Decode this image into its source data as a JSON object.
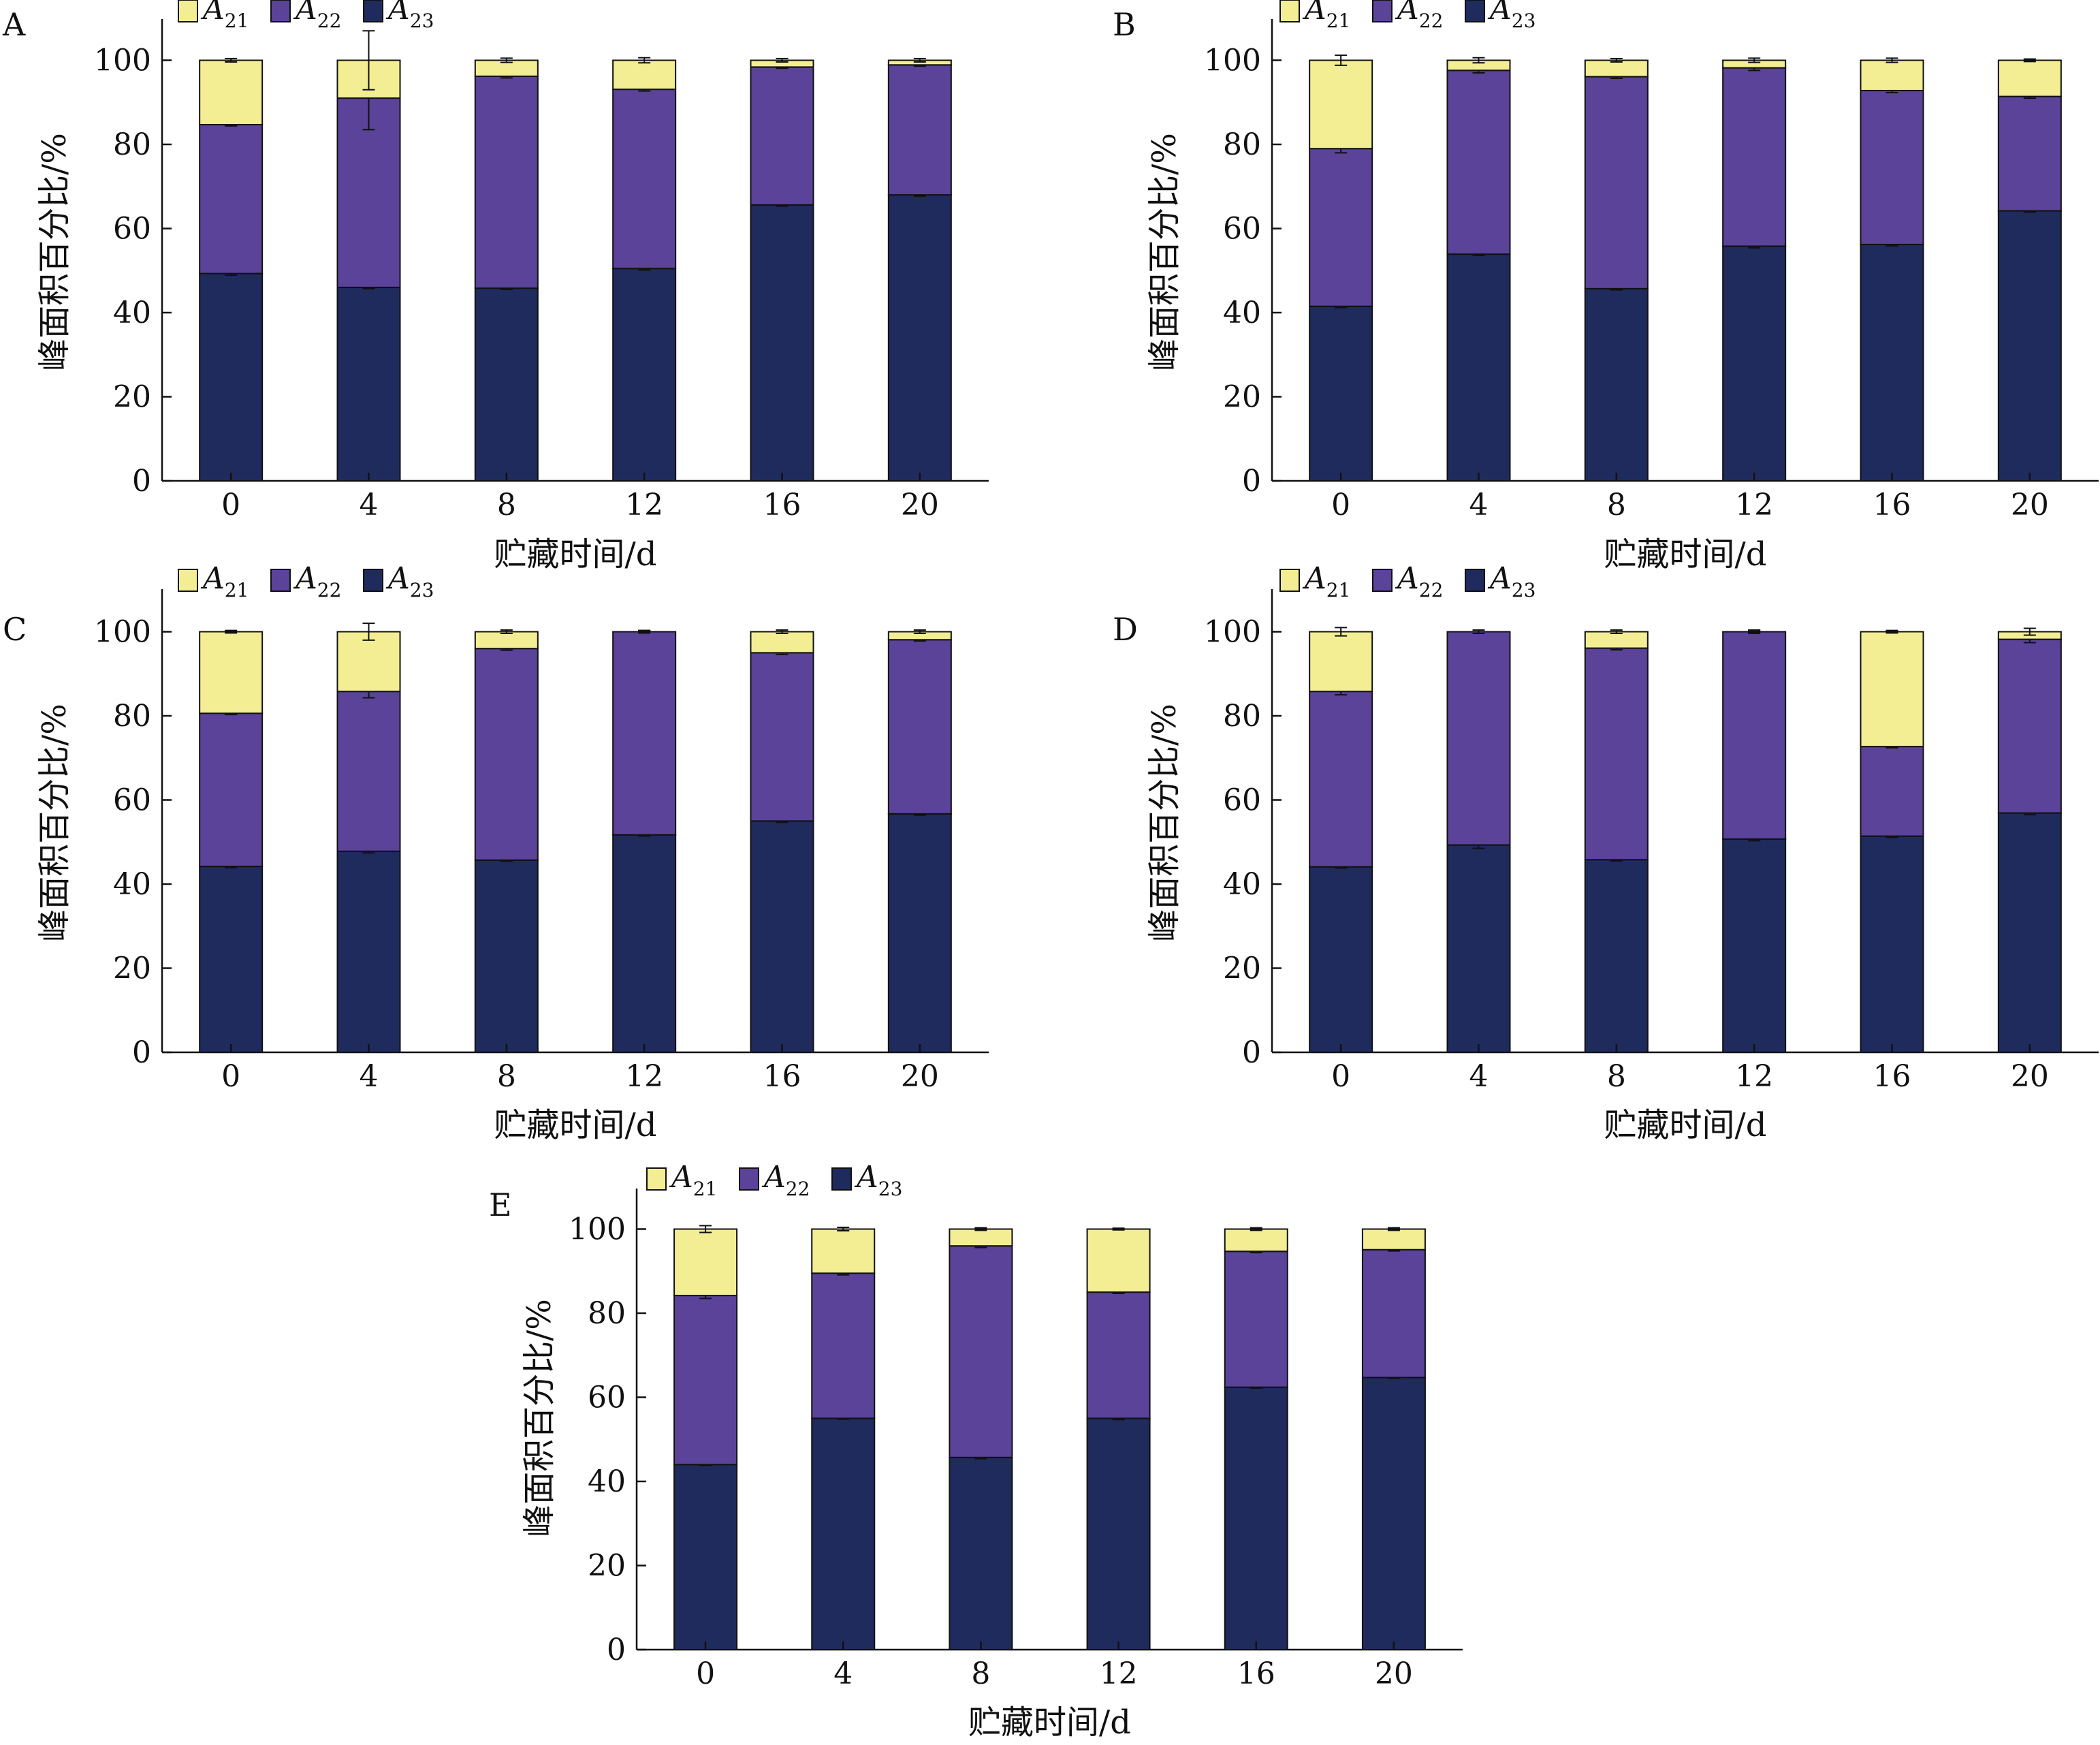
{
  "chart_data": [
    {
      "panel": "A",
      "type": "bar",
      "stacked": true,
      "categories": [
        "0",
        "4",
        "8",
        "12",
        "16",
        "20"
      ],
      "xlabel": "贮藏时间/d",
      "ylabel": "峰面积百分比/%",
      "ylim": [
        0,
        110
      ],
      "yticks": [
        "0",
        "20",
        "40",
        "60",
        "80",
        "100"
      ],
      "series": [
        {
          "name": "A21",
          "color": "#f3ee94",
          "values": [
            15.3,
            9.0,
            3.8,
            6.9,
            1.6,
            1.1
          ]
        },
        {
          "name": "A22",
          "color": "#5a4399",
          "values": [
            35.4,
            45.0,
            50.4,
            42.6,
            32.8,
            30.9
          ]
        },
        {
          "name": "A23",
          "color": "#1f2b5c",
          "values": [
            49.3,
            46.0,
            45.8,
            50.5,
            65.6,
            68.0
          ]
        }
      ],
      "error_bars": {
        "A21": [
          0.4,
          7.0,
          0.5,
          0.6,
          0.4,
          0.4
        ],
        "A22": [
          0.3,
          7.5,
          0.4,
          0.4,
          0.3,
          0.3
        ],
        "A23": [
          0.4,
          0.3,
          0.3,
          0.4,
          0.3,
          0.3
        ]
      }
    },
    {
      "panel": "B",
      "type": "bar",
      "stacked": true,
      "categories": [
        "0",
        "4",
        "8",
        "12",
        "16",
        "20"
      ],
      "xlabel": "贮藏时间/d",
      "ylabel": "峰面积百分比/%",
      "ylim": [
        0,
        110
      ],
      "yticks": [
        "0",
        "20",
        "40",
        "60",
        "80",
        "100"
      ],
      "series": [
        {
          "name": "A21",
          "color": "#f3ee94",
          "values": [
            21.0,
            2.4,
            3.9,
            1.8,
            7.2,
            8.6
          ]
        },
        {
          "name": "A22",
          "color": "#5a4399",
          "values": [
            37.5,
            43.7,
            50.4,
            42.4,
            36.6,
            27.2
          ]
        },
        {
          "name": "A23",
          "color": "#1f2b5c",
          "values": [
            41.5,
            53.9,
            45.7,
            55.8,
            56.2,
            64.2
          ]
        }
      ],
      "error_bars": {
        "A21": [
          1.2,
          0.6,
          0.4,
          0.5,
          0.5,
          0.3
        ],
        "A22": [
          1.0,
          0.6,
          0.4,
          0.6,
          0.5,
          0.4
        ],
        "A23": [
          0.3,
          0.3,
          0.3,
          0.4,
          0.3,
          0.3
        ]
      }
    },
    {
      "panel": "C",
      "type": "bar",
      "stacked": true,
      "categories": [
        "0",
        "4",
        "8",
        "12",
        "16",
        "20"
      ],
      "xlabel": "贮藏时间/d",
      "ylabel": "峰面积百分比/%",
      "ylim": [
        0,
        110
      ],
      "yticks": [
        "0",
        "20",
        "40",
        "60",
        "80",
        "100"
      ],
      "series": [
        {
          "name": "A21",
          "color": "#f3ee94",
          "values": [
            19.4,
            14.2,
            4.0,
            0.0,
            5.0,
            1.9
          ]
        },
        {
          "name": "A22",
          "color": "#5a4399",
          "values": [
            36.4,
            38.0,
            50.3,
            48.3,
            40.0,
            41.4
          ]
        },
        {
          "name": "A23",
          "color": "#1f2b5c",
          "values": [
            44.2,
            47.8,
            45.7,
            51.7,
            55.0,
            56.7
          ]
        }
      ],
      "error_bars": {
        "A21": [
          0.3,
          2.0,
          0.4,
          0.3,
          0.4,
          0.4
        ],
        "A22": [
          0.3,
          1.5,
          0.4,
          0.3,
          0.4,
          0.3
        ],
        "A23": [
          0.3,
          0.4,
          0.3,
          0.3,
          0.3,
          0.3
        ]
      }
    },
    {
      "panel": "D",
      "type": "bar",
      "stacked": true,
      "categories": [
        "0",
        "4",
        "8",
        "12",
        "16",
        "20"
      ],
      "xlabel": "贮藏时间/d",
      "ylabel": "峰面积百分比/%",
      "ylim": [
        0,
        110
      ],
      "yticks": [
        "0",
        "20",
        "40",
        "60",
        "80",
        "100"
      ],
      "series": [
        {
          "name": "A21",
          "color": "#f3ee94",
          "values": [
            14.2,
            0.0,
            3.9,
            0.0,
            27.3,
            1.8
          ]
        },
        {
          "name": "A22",
          "color": "#5a4399",
          "values": [
            41.7,
            50.7,
            50.3,
            49.3,
            21.3,
            41.3
          ]
        },
        {
          "name": "A23",
          "color": "#1f2b5c",
          "values": [
            44.1,
            49.3,
            45.8,
            50.7,
            51.4,
            56.9
          ]
        }
      ],
      "error_bars": {
        "A21": [
          1.0,
          0.4,
          0.4,
          0.4,
          0.3,
          0.8
        ],
        "A22": [
          0.8,
          0.4,
          0.4,
          0.3,
          0.3,
          0.8
        ],
        "A23": [
          0.3,
          0.8,
          0.3,
          0.4,
          0.3,
          0.4
        ]
      }
    },
    {
      "panel": "E",
      "type": "bar",
      "stacked": true,
      "categories": [
        "0",
        "4",
        "8",
        "12",
        "16",
        "20"
      ],
      "xlabel": "贮藏时间/d",
      "ylabel": "峰面积百分比/%",
      "ylim": [
        0,
        110
      ],
      "yticks": [
        "0",
        "20",
        "40",
        "60",
        "80",
        "100"
      ],
      "series": [
        {
          "name": "A21",
          "color": "#f3ee94",
          "values": [
            15.8,
            10.5,
            4.0,
            15.0,
            5.3,
            4.9
          ]
        },
        {
          "name": "A22",
          "color": "#5a4399",
          "values": [
            40.2,
            34.5,
            50.3,
            30.0,
            32.3,
            30.4
          ]
        },
        {
          "name": "A23",
          "color": "#1f2b5c",
          "values": [
            44.0,
            55.0,
            45.7,
            55.0,
            62.4,
            64.7
          ]
        }
      ],
      "error_bars": {
        "A21": [
          0.8,
          0.4,
          0.3,
          0.2,
          0.3,
          0.3
        ],
        "A22": [
          0.7,
          0.4,
          0.4,
          0.3,
          0.3,
          0.3
        ],
        "A23": [
          0.2,
          0.2,
          0.3,
          0.3,
          0.2,
          0.2
        ]
      }
    }
  ],
  "legend": {
    "items": [
      {
        "letter": "A",
        "sub": "21",
        "color": "#f3ee94"
      },
      {
        "letter": "A",
        "sub": "22",
        "color": "#5a4399"
      },
      {
        "letter": "A",
        "sub": "23",
        "color": "#1f2b5c"
      }
    ]
  }
}
